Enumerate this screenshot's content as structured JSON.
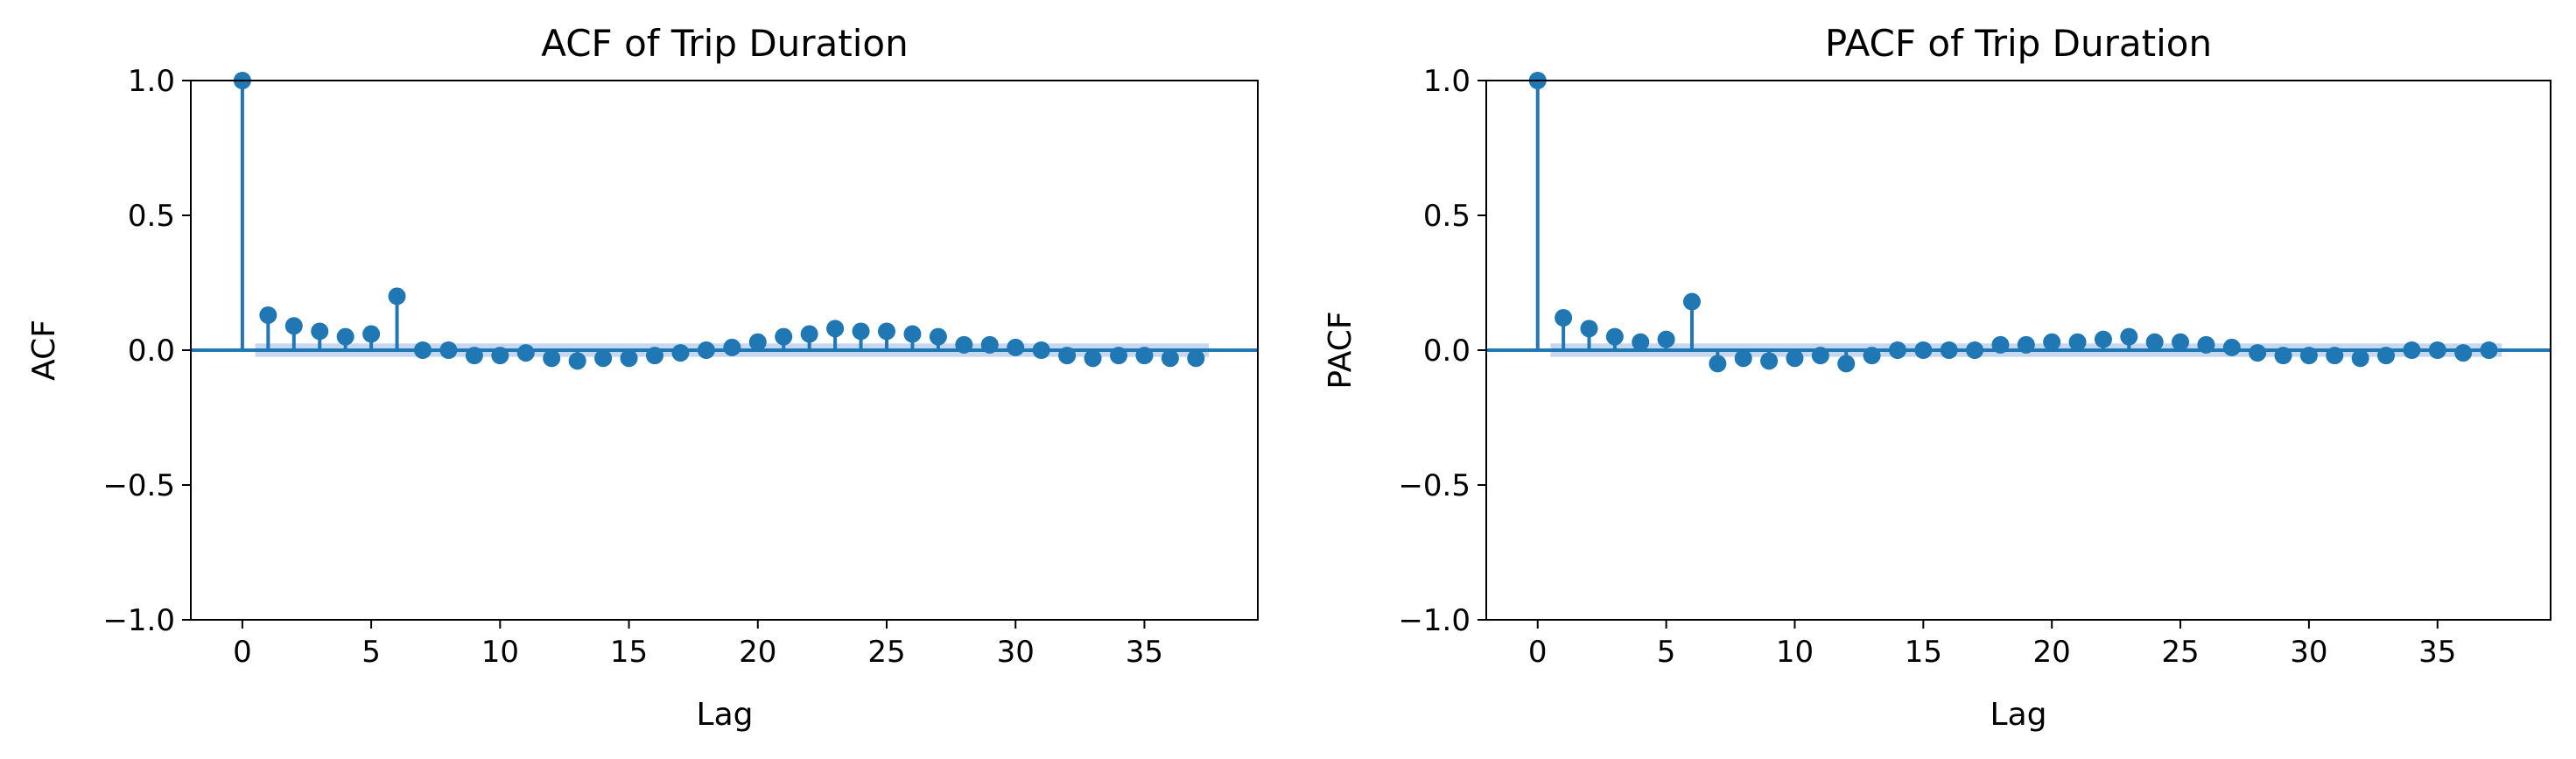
{
  "figure": {
    "panels": [
      {
        "title": "ACF of Trip Duration",
        "xlabel": "Lag",
        "ylabel": "ACF"
      },
      {
        "title": "PACF of Trip Duration",
        "xlabel": "Lag",
        "ylabel": "PACF"
      }
    ]
  },
  "chart_data": [
    {
      "type": "stem",
      "title": "ACF of Trip Duration",
      "xlabel": "Lag",
      "ylabel": "ACF",
      "xlim": [
        -2,
        39.4
      ],
      "ylim": [
        -1.0,
        1.0
      ],
      "xticks": [
        0,
        5,
        10,
        15,
        20,
        25,
        30,
        35
      ],
      "xtick_labels": [
        "0",
        "5",
        "10",
        "15",
        "20",
        "25",
        "30",
        "35"
      ],
      "yticks": [
        1.0,
        0.5,
        0.0,
        -0.5,
        -1.0
      ],
      "ytick_labels": [
        "1.0",
        "0.5",
        "0.0",
        "−0.5",
        "−1.0"
      ],
      "x": [
        0,
        1,
        2,
        3,
        4,
        5,
        6,
        7,
        8,
        9,
        10,
        11,
        12,
        13,
        14,
        15,
        16,
        17,
        18,
        19,
        20,
        21,
        22,
        23,
        24,
        25,
        26,
        27,
        28,
        29,
        30,
        31,
        32,
        33,
        34,
        35,
        36,
        37
      ],
      "values": [
        1.0,
        0.13,
        0.09,
        0.07,
        0.05,
        0.06,
        0.2,
        0.0,
        0.0,
        -0.02,
        -0.02,
        -0.01,
        -0.03,
        -0.04,
        -0.03,
        -0.03,
        -0.02,
        -0.01,
        0.0,
        0.01,
        0.03,
        0.05,
        0.06,
        0.08,
        0.07,
        0.07,
        0.06,
        0.05,
        0.02,
        0.02,
        0.01,
        0.0,
        -0.02,
        -0.03,
        -0.02,
        -0.02,
        -0.03,
        -0.03
      ],
      "confidence_band": 0.025,
      "grid": false,
      "colors": {
        "stem": "#1f77b4",
        "band": "#aec7e8"
      }
    },
    {
      "type": "stem",
      "title": "PACF of Trip Duration",
      "xlabel": "Lag",
      "ylabel": "PACF",
      "xlim": [
        -2,
        39.4
      ],
      "ylim": [
        -1.0,
        1.0
      ],
      "xticks": [
        0,
        5,
        10,
        15,
        20,
        25,
        30,
        35
      ],
      "xtick_labels": [
        "0",
        "5",
        "10",
        "15",
        "20",
        "25",
        "30",
        "35"
      ],
      "yticks": [
        1.0,
        0.5,
        0.0,
        -0.5,
        -1.0
      ],
      "ytick_labels": [
        "1.0",
        "0.5",
        "0.0",
        "−0.5",
        "−1.0"
      ],
      "x": [
        0,
        1,
        2,
        3,
        4,
        5,
        6,
        7,
        8,
        9,
        10,
        11,
        12,
        13,
        14,
        15,
        16,
        17,
        18,
        19,
        20,
        21,
        22,
        23,
        24,
        25,
        26,
        27,
        28,
        29,
        30,
        31,
        32,
        33,
        34,
        35,
        36,
        37
      ],
      "values": [
        1.0,
        0.12,
        0.08,
        0.05,
        0.03,
        0.04,
        0.18,
        -0.05,
        -0.03,
        -0.04,
        -0.03,
        -0.02,
        -0.05,
        -0.02,
        0.0,
        0.0,
        0.0,
        0.0,
        0.02,
        0.02,
        0.03,
        0.03,
        0.04,
        0.05,
        0.03,
        0.03,
        0.02,
        0.01,
        -0.01,
        -0.02,
        -0.02,
        -0.02,
        -0.03,
        -0.02,
        0.0,
        0.0,
        -0.01,
        0.0
      ],
      "confidence_band": 0.025,
      "grid": false,
      "colors": {
        "stem": "#1f77b4",
        "band": "#aec7e8"
      }
    }
  ]
}
